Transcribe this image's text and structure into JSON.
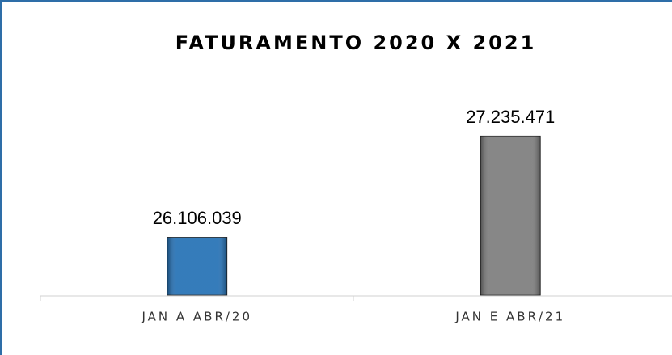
{
  "chart_data": {
    "type": "bar",
    "title": "FATURAMENTO 2020 X 2021",
    "categories": [
      "JAN A ABR/20",
      "JAN E ABR/21"
    ],
    "values": [
      26106039,
      27235471
    ],
    "value_labels": [
      "26.106.039",
      "27.235.471"
    ],
    "colors": [
      "#1f6db3",
      "#7a7a7a"
    ],
    "ylim": [
      25460000,
      27500000
    ]
  }
}
